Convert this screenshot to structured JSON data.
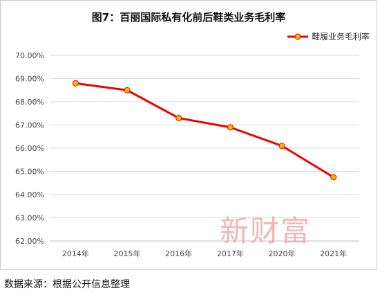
{
  "chart_data": {
    "type": "line",
    "title": "图7：百丽国际私有化前后鞋类业务毛利率",
    "categories": [
      "2014年",
      "2015年",
      "2016年",
      "2017年",
      "2020年",
      "2021年"
    ],
    "series": [
      {
        "name": "鞋履业务毛利率",
        "values": [
          68.8,
          68.5,
          67.3,
          66.9,
          66.1,
          64.75
        ],
        "color": "#ee0000",
        "marker_fill": "#f5b800"
      }
    ],
    "ylim": [
      62,
      70
    ],
    "ytick_step": 1,
    "ytick_format": "percent_2dp",
    "grid": true,
    "legend_position": "top-right",
    "xlabel": "",
    "ylabel": ""
  },
  "watermark": "新财富",
  "source": "数据来源：根据公开信息整理"
}
